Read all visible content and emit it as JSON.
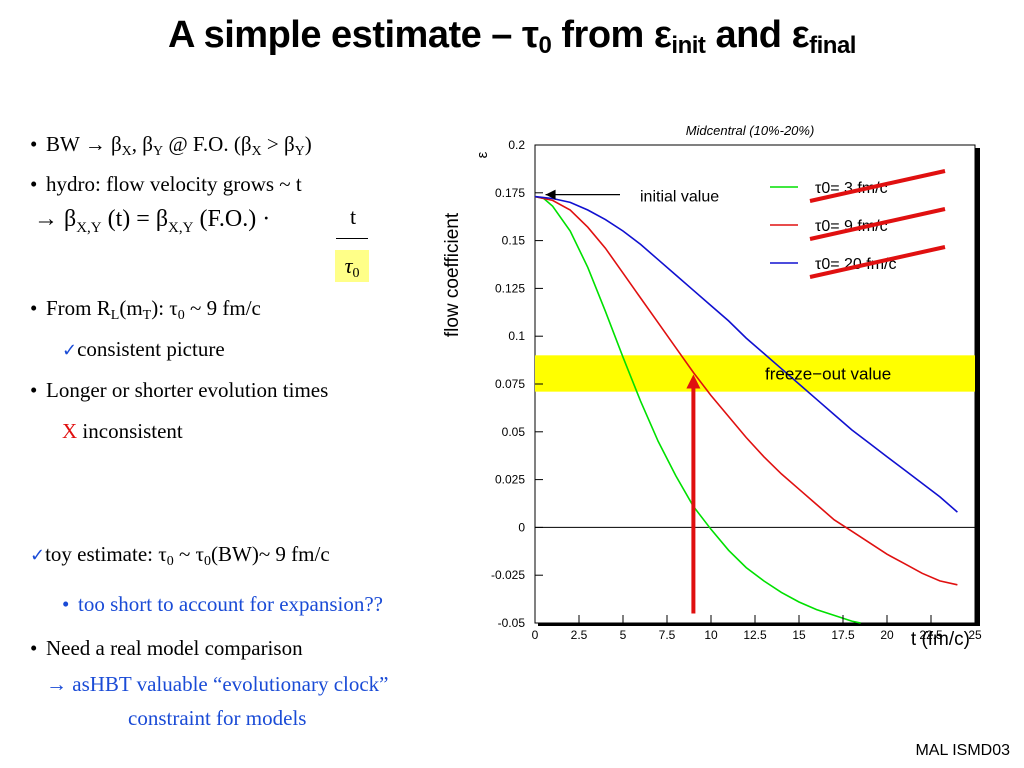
{
  "slide": {
    "title_main": "A simple estimate – τ",
    "title_sub0": "0",
    "title_from": " from ε",
    "title_init": "init",
    "title_and": " and ε",
    "title_final": "final",
    "footer": "MAL ISMD03"
  },
  "bullets": {
    "b1_pre": "BW → β",
    "b1_x": "X",
    "b1_mid": ", β",
    "b1_y": "Y",
    "b1_post": " @ F.O.  (β",
    "b1_x2": "X",
    "b1_gt": " > β",
    "b1_y2": "Y",
    "b1_end": ")",
    "b2": "hydro: flow velocity grows ~ t",
    "eq_arrow": "→ β",
    "eq_sub1": "X,Y",
    "eq_mid": " (t) = β",
    "eq_sub2": "X,Y",
    "eq_end": " (F.O.) ·",
    "eq_num": "t",
    "eq_den": "τ",
    "eq_den_sub": "0",
    "b3_pre": "From R",
    "b3_l": "L",
    "b3_m": "(m",
    "b3_t": "T",
    "b3_post": "): τ",
    "b3_sub0": "0",
    "b3_end": " ~ 9 fm/c",
    "b3_check": "✓",
    "b3_consistent": "consistent picture",
    "b4": "Longer or shorter evolution times",
    "b4_x": "X",
    "b4_inconsistent": " inconsistent",
    "b5_check": "✓",
    "b5_pre": "toy estimate: τ",
    "b5_sub1": "0",
    "b5_mid": " ~ τ",
    "b5_sub2": "0",
    "b5_end": "(BW)~ 9 fm/c",
    "b6": "too short to account for expansion??",
    "b7": "Need a real model comparison",
    "b7_line2": "→ asHBT valuable “evolutionary clock”",
    "b7_line3": "constraint for models",
    "bullet_char": "•"
  },
  "chart_data": {
    "type": "line",
    "title": "Midcentral (10%-20%)",
    "xlabel": "t (fm/c)",
    "ylabel": "flow coefficient",
    "y_axis_symbol": "ε",
    "xlim": [
      0,
      25
    ],
    "ylim": [
      -0.05,
      0.2
    ],
    "x_ticks": [
      "0",
      "2.5",
      "5",
      "7.5",
      "10",
      "12.5",
      "15",
      "17.5",
      "20",
      "22.5",
      "25"
    ],
    "y_ticks": [
      "-0.05",
      "-0.025",
      "0",
      "0.025",
      "0.05",
      "0.075",
      "0.1",
      "0.125",
      "0.15",
      "0.175",
      "0.2"
    ],
    "series": [
      {
        "name": "τ0= 3 fm/c",
        "color": "#00e000",
        "x": [
          0,
          0.5,
          1,
          2,
          3,
          4,
          5,
          6,
          7,
          8,
          9,
          10,
          11,
          12,
          13,
          14,
          15,
          16,
          17,
          18,
          18.5
        ],
        "y": [
          0.173,
          0.172,
          0.168,
          0.155,
          0.136,
          0.113,
          0.089,
          0.066,
          0.045,
          0.027,
          0.011,
          -0.001,
          -0.012,
          -0.021,
          -0.028,
          -0.034,
          -0.039,
          -0.043,
          -0.046,
          -0.049,
          -0.05
        ]
      },
      {
        "name": "τ0= 9 fm/c",
        "color": "#e01010",
        "x": [
          0,
          1,
          2,
          3,
          4,
          5,
          6,
          7,
          8,
          9,
          10,
          11,
          12,
          13,
          14,
          15,
          16,
          17,
          18,
          19,
          20,
          21,
          22,
          23,
          24
        ],
        "y": [
          0.173,
          0.171,
          0.166,
          0.157,
          0.146,
          0.133,
          0.12,
          0.107,
          0.094,
          0.081,
          0.069,
          0.058,
          0.047,
          0.037,
          0.028,
          0.02,
          0.012,
          0.004,
          -0.002,
          -0.008,
          -0.014,
          -0.019,
          -0.024,
          -0.028,
          -0.03
        ]
      },
      {
        "name": "τ0= 20 fm/c",
        "color": "#1010d0",
        "x": [
          0,
          1,
          2,
          3,
          4,
          5,
          6,
          7,
          8,
          9,
          10,
          11,
          12,
          13,
          14,
          15,
          16,
          17,
          18,
          19,
          20,
          21,
          22,
          23,
          24
        ],
        "y": [
          0.173,
          0.172,
          0.17,
          0.166,
          0.161,
          0.155,
          0.148,
          0.14,
          0.132,
          0.124,
          0.116,
          0.108,
          0.099,
          0.091,
          0.083,
          0.075,
          0.067,
          0.059,
          0.051,
          0.044,
          0.037,
          0.03,
          0.023,
          0.016,
          0.008
        ]
      }
    ],
    "freeze_out_band": [
      0.071,
      0.09
    ],
    "annotations": {
      "initial": "initial value",
      "freeze": "freeze−out value",
      "initial_value": 0.173,
      "arrow_x": 9,
      "arrow_y_from": -0.045,
      "arrow_y_to": 0.08
    },
    "colors": {
      "band": "#ffff00",
      "arrow": "#e01010",
      "strike": "#e01010"
    }
  }
}
